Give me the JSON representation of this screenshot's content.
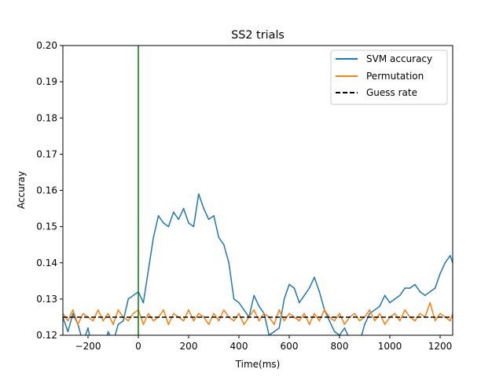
{
  "chart_data": {
    "type": "line",
    "title": "SS2 trials",
    "xlabel": "Time(ms)",
    "ylabel": "Accuray",
    "xlim": [
      -300,
      1250
    ],
    "ylim": [
      0.12,
      0.2
    ],
    "xticks": [
      -200,
      0,
      200,
      400,
      600,
      800,
      1000,
      1200
    ],
    "yticks": [
      0.12,
      0.13,
      0.14,
      0.15,
      0.16,
      0.17,
      0.18,
      0.19,
      0.2
    ],
    "grid": false,
    "legend_position": "top-right",
    "vertical_line": {
      "x": 0,
      "color": "#008000"
    },
    "guess_rate": {
      "name": "Guess rate",
      "y": 0.125,
      "color": "#000000",
      "style": "dashed"
    },
    "series": [
      {
        "name": "SVM accuracy",
        "color": "#1f77b4",
        "x": [
          -300,
          -280,
          -260,
          -240,
          -220,
          -200,
          -180,
          -160,
          -140,
          -120,
          -100,
          -80,
          -60,
          -40,
          -20,
          0,
          20,
          40,
          60,
          80,
          100,
          120,
          140,
          160,
          180,
          200,
          220,
          240,
          260,
          280,
          300,
          320,
          340,
          360,
          380,
          400,
          420,
          440,
          460,
          480,
          500,
          520,
          540,
          560,
          580,
          600,
          620,
          640,
          660,
          680,
          700,
          720,
          740,
          760,
          780,
          800,
          820,
          840,
          860,
          880,
          900,
          920,
          940,
          960,
          980,
          1000,
          1020,
          1040,
          1060,
          1080,
          1100,
          1120,
          1140,
          1160,
          1180,
          1200,
          1220,
          1240,
          1250
        ],
        "values": [
          0.125,
          0.121,
          0.126,
          0.123,
          0.118,
          0.122,
          0.115,
          0.117,
          0.116,
          0.121,
          0.118,
          0.123,
          0.124,
          0.13,
          0.131,
          0.132,
          0.129,
          0.138,
          0.147,
          0.153,
          0.151,
          0.15,
          0.154,
          0.152,
          0.155,
          0.151,
          0.15,
          0.159,
          0.155,
          0.152,
          0.153,
          0.147,
          0.145,
          0.14,
          0.13,
          0.129,
          0.127,
          0.125,
          0.131,
          0.128,
          0.126,
          0.12,
          0.121,
          0.122,
          0.13,
          0.134,
          0.133,
          0.129,
          0.131,
          0.133,
          0.136,
          0.132,
          0.127,
          0.124,
          0.121,
          0.12,
          0.122,
          0.119,
          0.118,
          0.118,
          0.123,
          0.126,
          0.127,
          0.128,
          0.131,
          0.129,
          0.13,
          0.131,
          0.133,
          0.133,
          0.134,
          0.132,
          0.131,
          0.132,
          0.133,
          0.137,
          0.14,
          0.142,
          0.14
        ]
      },
      {
        "name": "Permutation",
        "color": "#ff7f0e",
        "x": [
          -300,
          -280,
          -260,
          -240,
          -220,
          -200,
          -180,
          -160,
          -140,
          -120,
          -100,
          -80,
          -60,
          -40,
          -20,
          0,
          20,
          40,
          60,
          80,
          100,
          120,
          140,
          160,
          180,
          200,
          220,
          240,
          260,
          280,
          300,
          320,
          340,
          360,
          380,
          400,
          420,
          440,
          460,
          480,
          500,
          520,
          540,
          560,
          580,
          600,
          620,
          640,
          660,
          680,
          700,
          720,
          740,
          760,
          780,
          800,
          820,
          840,
          860,
          880,
          900,
          920,
          940,
          960,
          980,
          1000,
          1020,
          1040,
          1060,
          1080,
          1100,
          1120,
          1140,
          1160,
          1180,
          1200,
          1220,
          1240,
          1250
        ],
        "values": [
          0.126,
          0.124,
          0.127,
          0.123,
          0.126,
          0.125,
          0.124,
          0.127,
          0.124,
          0.126,
          0.123,
          0.127,
          0.125,
          0.124,
          0.126,
          0.127,
          0.123,
          0.126,
          0.124,
          0.125,
          0.127,
          0.123,
          0.126,
          0.125,
          0.124,
          0.127,
          0.124,
          0.126,
          0.125,
          0.123,
          0.126,
          0.124,
          0.127,
          0.125,
          0.124,
          0.126,
          0.123,
          0.125,
          0.127,
          0.124,
          0.126,
          0.125,
          0.123,
          0.127,
          0.124,
          0.126,
          0.125,
          0.124,
          0.126,
          0.123,
          0.126,
          0.124,
          0.127,
          0.125,
          0.124,
          0.126,
          0.123,
          0.125,
          0.126,
          0.124,
          0.125,
          0.127,
          0.124,
          0.126,
          0.123,
          0.125,
          0.126,
          0.124,
          0.127,
          0.125,
          0.124,
          0.126,
          0.125,
          0.129,
          0.124,
          0.126,
          0.125,
          0.124,
          0.126
        ]
      }
    ]
  }
}
